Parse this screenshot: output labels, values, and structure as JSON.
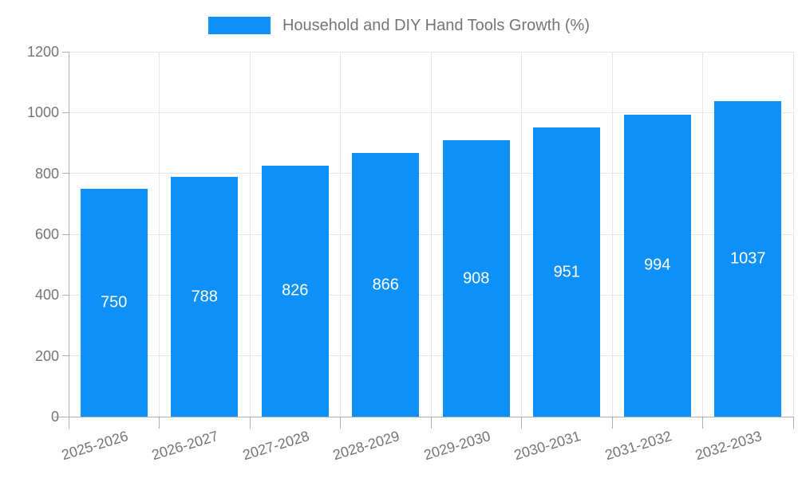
{
  "legend": {
    "label": "Household and DIY Hand Tools Growth (%)"
  },
  "chart_data": {
    "type": "bar",
    "title": "Household and DIY Hand Tools Growth (%)",
    "series_name": "Household and DIY Hand Tools Growth (%)",
    "categories": [
      "2025-2026",
      "2026-2027",
      "2027-2028",
      "2028-2029",
      "2029-2030",
      "2030-2031",
      "2031-2032",
      "2032-2033"
    ],
    "values": [
      750,
      788,
      826,
      866,
      908,
      951,
      994,
      1037
    ],
    "value_labels": [
      "750",
      "788",
      "826",
      "866",
      "908",
      "951",
      "994",
      "1037"
    ],
    "xlabel": "",
    "ylabel": "",
    "ylim": [
      0,
      1200
    ],
    "ytick_step": 200,
    "ytick_labels": [
      "0",
      "200",
      "400",
      "600",
      "800",
      "1000",
      "1200"
    ],
    "grid": true,
    "legend_position": "top",
    "x_label_rotation_deg": -17,
    "colors": {
      "bar": "#0d90f7",
      "value_label": "#ffffff",
      "tick_label": "#757575",
      "title": "#757575",
      "gridline": "#e6e6e6",
      "axis": "#b0b0b0",
      "background": "#ffffff"
    }
  }
}
